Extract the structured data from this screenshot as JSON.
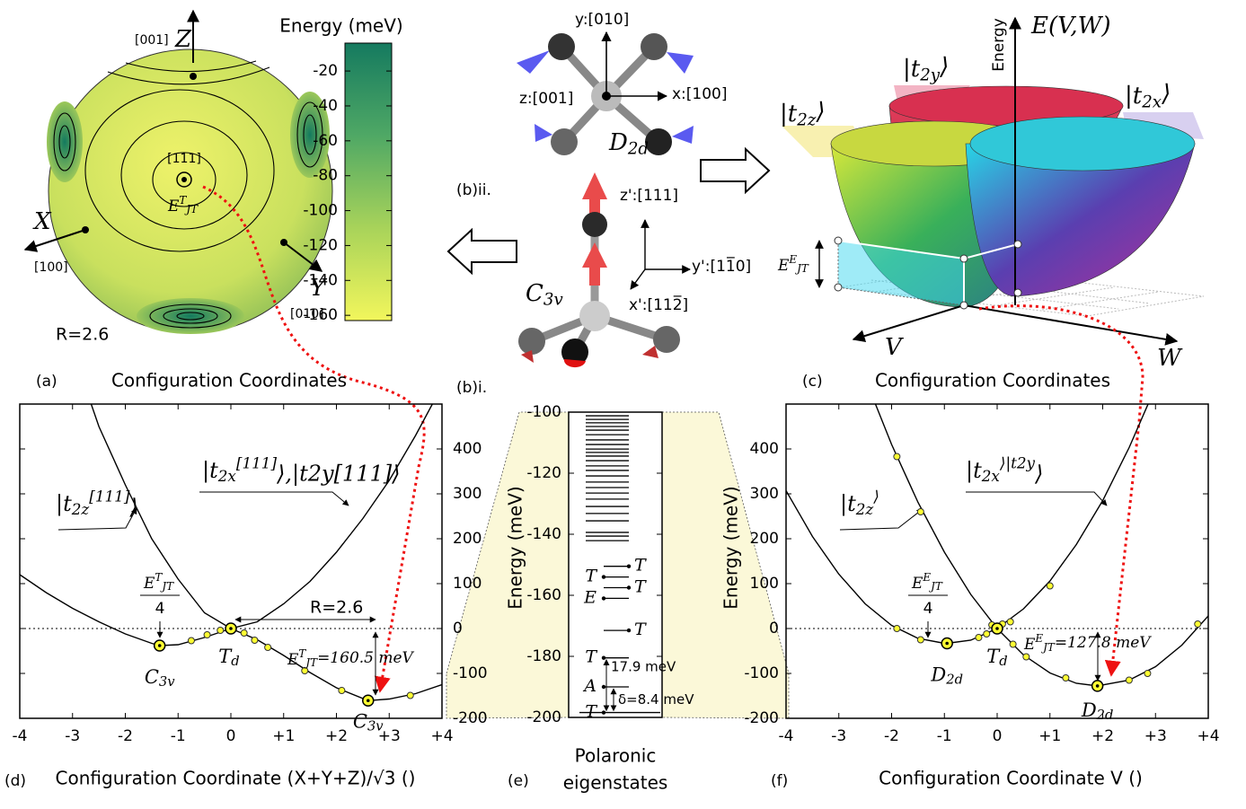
{
  "panels": {
    "a": {
      "label": "(a)",
      "radius_label": "R=2.6",
      "z": "Z",
      "z_dir": "[001]",
      "x": "X",
      "x_dir": "[100]",
      "y": "Y",
      "y_dir": "[010]",
      "point": "[111]",
      "point_label": "ETJT",
      "colorbar": {
        "title": "Energy (meV)",
        "lim": [
          -163,
          -4
        ],
        "ticks": [
          -160,
          -140,
          -120,
          -100,
          -80,
          -60,
          -40,
          -20
        ],
        "colors": [
          "#f2f65c",
          "#a8d35a",
          "#4fa865",
          "#157a5f"
        ]
      }
    },
    "b": {
      "label_i": "(b)i.",
      "label_ii": "(b)ii.",
      "d2d_y": "y:[010]",
      "d2d_x": "x:[100]",
      "d2d_z": "z:[001]",
      "d2d": "D2d",
      "c3v_z": "z':[111]",
      "c3v_y": "y':[11̅0]",
      "c3v_x": "x':[112̅]",
      "c3v": "C3v"
    },
    "c": {
      "label": "(c)",
      "function": "E(V,W)",
      "energy": "Energy",
      "t2y": "|t2y⟩",
      "t2x": "|t2x⟩",
      "t2z": "|t2z⟩",
      "gap": "EEJT",
      "v": "V",
      "w": "W"
    }
  },
  "chart_data": [
    {
      "type": "line",
      "label": "(d)",
      "title": "Configuration Coordinates",
      "xlabel": "Configuration Coordinate (X+Y+Z)/√3 ()",
      "ylabel": "Energy (meV)",
      "xlim": [
        -4,
        4
      ],
      "xticks": [
        -4,
        -3,
        -2,
        -1,
        0,
        {
          "value": 1,
          "label": "+1"
        },
        {
          "value": 2,
          "label": "+2"
        },
        {
          "value": 3,
          "label": "+3"
        },
        {
          "value": 4,
          "label": "+4"
        }
      ],
      "ylim": [
        -200,
        500
      ],
      "yticks": [
        -200,
        -100,
        0,
        100,
        200,
        300,
        400
      ],
      "zero_line": true,
      "series": [
        {
          "name": "|t2z[111]⟩",
          "color": "#000000",
          "x": [
            -4,
            -3.5,
            -3,
            -2.5,
            -2,
            -1.5,
            -1.35,
            -1,
            -0.5,
            0,
            0.5,
            1,
            1.5,
            2,
            2.6,
            3,
            3.5,
            4
          ],
          "values": [
            120,
            80,
            45,
            15,
            -12,
            -33,
            -38,
            -36,
            -20,
            0,
            -25,
            -60,
            -98,
            -132,
            -160.5,
            -157,
            -145,
            -125
          ]
        },
        {
          "name": "|t2x[111]⟩,|t2y[111]⟩",
          "color": "#000000",
          "x": [
            -3,
            -2.5,
            -2,
            -1.5,
            -1,
            -0.5,
            0,
            0.5,
            1,
            1.5,
            2,
            2.5,
            3,
            3.5,
            4
          ],
          "values": [
            620,
            450,
            320,
            200,
            110,
            35,
            0,
            15,
            55,
            105,
            170,
            245,
            330,
            430,
            540
          ]
        }
      ],
      "points": {
        "color": "#ffff33",
        "x": [
          -0.75,
          -0.45,
          -0.2,
          0.25,
          0.45,
          0.7,
          1.4,
          2.1,
          3.4
        ],
        "values": [
          -27,
          -14,
          -4,
          -10,
          -26,
          -42,
          -94,
          -138,
          -149
        ]
      },
      "markers": {
        "x": [
          -1.35,
          0,
          2.6
        ],
        "values": [
          -38,
          0,
          -160.5
        ],
        "labels": [
          "C3v",
          "Td",
          "C3v"
        ]
      },
      "fraction": [
        "ETJT",
        "4"
      ],
      "distance": "R=2.6",
      "energy": "ETJT=160.5 meV"
    },
    {
      "type": "levels",
      "label": "(e)",
      "xlabel_lines": [
        "Polaronic",
        "eigenstates"
      ],
      "ylim": [
        -200,
        -100
      ],
      "yticks": [
        -200,
        -180,
        -160,
        -140,
        -120,
        -100
      ],
      "values": [
        -198.4,
        -190.0,
        -180.5,
        -171.5,
        -161.0,
        -157.5,
        -154.0,
        -150.5,
        -142.1,
        -140.6,
        -139.4,
        -135.6,
        -133.2,
        -130.9,
        -128.5,
        -126.5,
        -124.7,
        -122.9,
        -120.9,
        -119.1,
        -117.6,
        -115.9,
        -114.4,
        -113.2,
        -112.1,
        -110.6,
        -109.1,
        -107.4,
        -105.9,
        -104.7,
        -103.5,
        -102.4,
        -101.2
      ],
      "level_labels": [
        "T",
        "A",
        "T",
        "T",
        "E",
        "T",
        "T",
        "T",
        null,
        null,
        null,
        null,
        null,
        null,
        null,
        null,
        null,
        null,
        null,
        null,
        null,
        null,
        null,
        null,
        null,
        null,
        null,
        null,
        null,
        null,
        null,
        null,
        null
      ],
      "gap_labels": [
        "17.9 meV",
        "δ=8.4 meV"
      ]
    },
    {
      "type": "line",
      "label": "(f)",
      "title": "Configuration Coordinates",
      "xlabel": "Configuration Coordinate V ()",
      "ylabel": "Energy (meV)",
      "xlim": [
        -4,
        4
      ],
      "xticks": [
        -4,
        -3,
        -2,
        -1,
        0,
        {
          "value": 1,
          "label": "+1"
        },
        {
          "value": 2,
          "label": "+2"
        },
        {
          "value": 3,
          "label": "+3"
        },
        {
          "value": 4,
          "label": "+4"
        }
      ],
      "ylim": [
        -200,
        500
      ],
      "yticks": [
        -200,
        -100,
        0,
        100,
        200,
        300,
        400
      ],
      "zero_line": true,
      "series": [
        {
          "name": "|t2z⟩",
          "color": "#000000",
          "x": [
            -2.5,
            -2,
            -1.5,
            -1,
            -0.5,
            0,
            0.5,
            1,
            1.5,
            1.9,
            2.5,
            3,
            3.5,
            4
          ],
          "values": [
            557,
            410,
            281,
            170,
            76,
            0,
            -59,
            -99,
            -122,
            -127.8,
            -115,
            -85,
            -37,
            28
          ]
        },
        {
          "name": "|t2x⟩|t2y⟩",
          "color": "#000000",
          "x": [
            -4,
            -3.5,
            -3,
            -2.5,
            -2,
            -1.5,
            -1,
            -0.95,
            -0.5,
            0,
            0.5,
            1,
            1.5,
            2,
            2.5,
            3
          ],
          "values": [
            307,
            205,
            121,
            55,
            7,
            -22,
            -33,
            -33,
            -26,
            0,
            44,
            106,
            187,
            285,
            403,
            538
          ]
        }
      ],
      "points": {
        "color": "#ffff33",
        "x": [
          -1.9,
          -1.45,
          -1.9,
          -1.45,
          -0.35,
          -0.2,
          -0.1,
          0.1,
          0.25,
          0.3,
          0.55,
          1,
          1.3,
          2.5,
          2.85,
          3.8
        ],
        "values": [
          383,
          260,
          0,
          -25,
          -20,
          -12,
          8,
          10,
          15,
          -35,
          -63,
          95,
          -110,
          -115,
          -100,
          10
        ]
      },
      "markers": {
        "x": [
          -0.95,
          0,
          1.9
        ],
        "values": [
          -33,
          0,
          -127.8
        ],
        "labels": [
          "D2d",
          "Td",
          "D2d"
        ]
      },
      "fraction": [
        "EEJT",
        "4"
      ],
      "energy": "EEJT=127.8 meV"
    }
  ]
}
